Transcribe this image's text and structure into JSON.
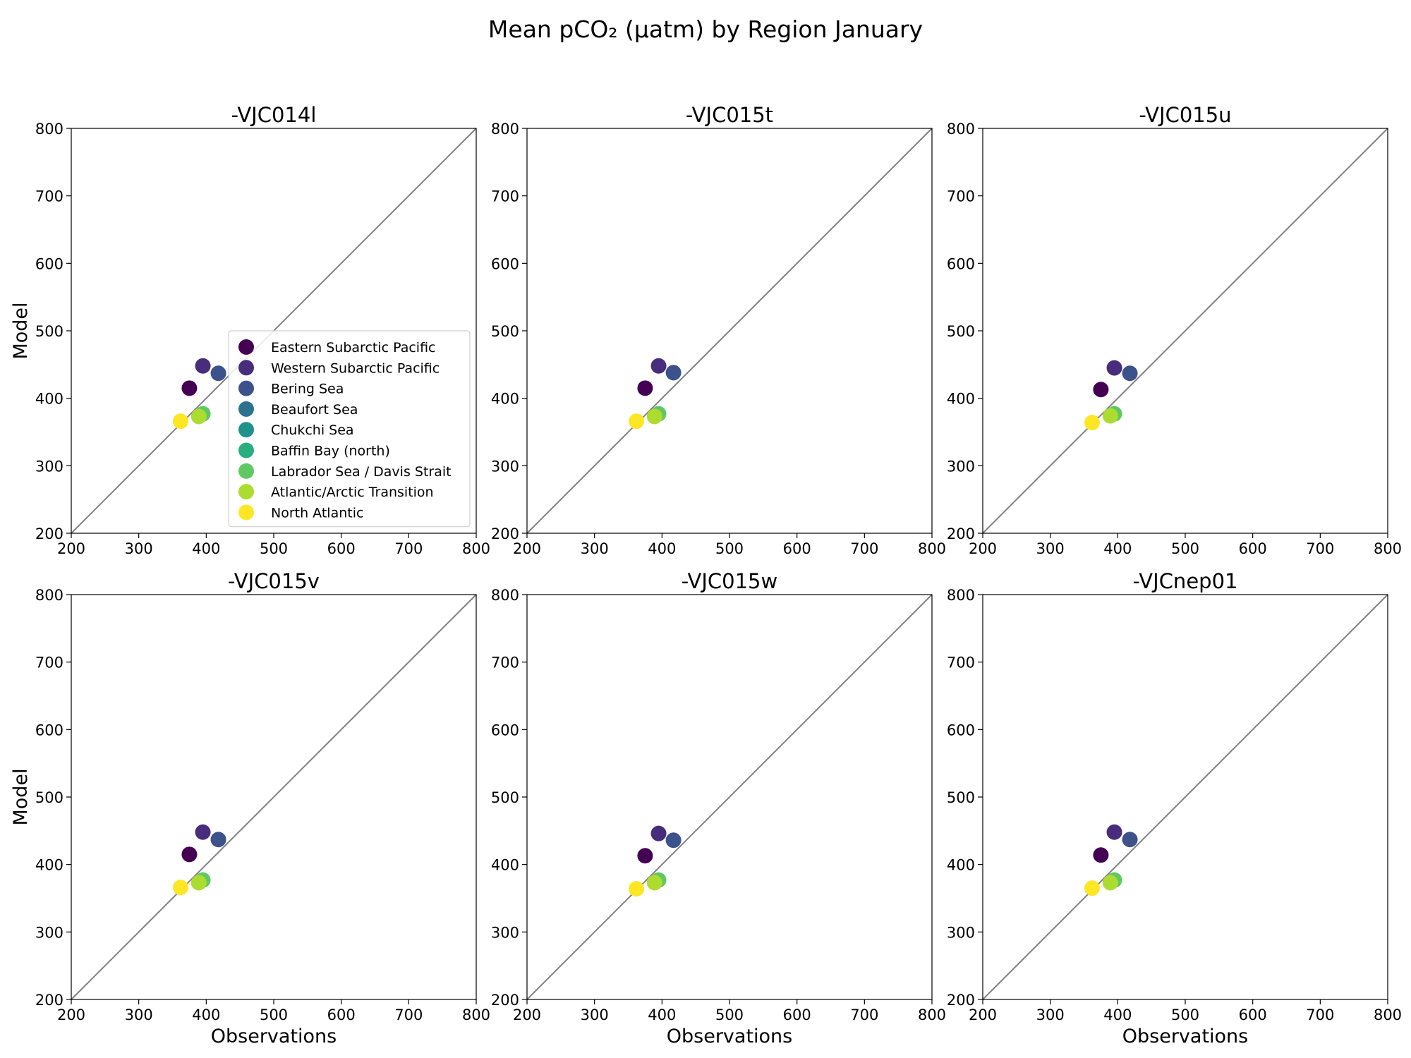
{
  "chart_data": {
    "type": "scatter",
    "title": "Mean pCO₂ (μatm) by Region January",
    "xlabel": "Observations",
    "ylabel": "Model",
    "xlim": [
      200,
      800
    ],
    "ylim": [
      200,
      800
    ],
    "ticks": [
      200,
      300,
      400,
      500,
      600,
      700,
      800
    ],
    "reference_line": "1:1",
    "grid": false,
    "legend_location": "lower-right of first panel",
    "legend": [
      {
        "name": "Eastern Subarctic Pacific",
        "color": "#440154"
      },
      {
        "name": "Western Subarctic Pacific",
        "color": "#472d7b"
      },
      {
        "name": "Bering Sea",
        "color": "#3b528b"
      },
      {
        "name": "Beaufort Sea",
        "color": "#2c728e"
      },
      {
        "name": "Chukchi Sea",
        "color": "#21918c"
      },
      {
        "name": "Baffin Bay (north)",
        "color": "#28ae80"
      },
      {
        "name": "Labrador Sea / Davis Strait",
        "color": "#5ec962"
      },
      {
        "name": "Atlantic/Arctic Transition",
        "color": "#addc30"
      },
      {
        "name": "North Atlantic",
        "color": "#fde725"
      }
    ],
    "panels": [
      {
        "title": "-VJC014l",
        "points": [
          {
            "region": "Eastern Subarctic Pacific",
            "x": 375,
            "y": 415
          },
          {
            "region": "Western Subarctic Pacific",
            "x": 395,
            "y": 448
          },
          {
            "region": "Bering Sea",
            "x": 418,
            "y": 437
          },
          {
            "region": "Labrador Sea / Davis Strait",
            "x": 395,
            "y": 377
          },
          {
            "region": "Atlantic/Arctic Transition",
            "x": 389,
            "y": 373
          },
          {
            "region": "North Atlantic",
            "x": 362,
            "y": 366
          }
        ]
      },
      {
        "title": "-VJC015t",
        "points": [
          {
            "region": "Eastern Subarctic Pacific",
            "x": 375,
            "y": 415
          },
          {
            "region": "Western Subarctic Pacific",
            "x": 395,
            "y": 448
          },
          {
            "region": "Bering Sea",
            "x": 417,
            "y": 438
          },
          {
            "region": "Labrador Sea / Davis Strait",
            "x": 395,
            "y": 377
          },
          {
            "region": "Atlantic/Arctic Transition",
            "x": 389,
            "y": 373
          },
          {
            "region": "North Atlantic",
            "x": 362,
            "y": 366
          }
        ]
      },
      {
        "title": "-VJC015u",
        "points": [
          {
            "region": "Eastern Subarctic Pacific",
            "x": 375,
            "y": 413
          },
          {
            "region": "Western Subarctic Pacific",
            "x": 395,
            "y": 445
          },
          {
            "region": "Bering Sea",
            "x": 418,
            "y": 437
          },
          {
            "region": "Labrador Sea / Davis Strait",
            "x": 395,
            "y": 377
          },
          {
            "region": "Atlantic/Arctic Transition",
            "x": 389,
            "y": 374
          },
          {
            "region": "North Atlantic",
            "x": 362,
            "y": 364
          }
        ]
      },
      {
        "title": "-VJC015v",
        "points": [
          {
            "region": "Eastern Subarctic Pacific",
            "x": 375,
            "y": 415
          },
          {
            "region": "Western Subarctic Pacific",
            "x": 395,
            "y": 448
          },
          {
            "region": "Bering Sea",
            "x": 418,
            "y": 437
          },
          {
            "region": "Labrador Sea / Davis Strait",
            "x": 395,
            "y": 377
          },
          {
            "region": "Atlantic/Arctic Transition",
            "x": 389,
            "y": 373
          },
          {
            "region": "North Atlantic",
            "x": 362,
            "y": 366
          }
        ]
      },
      {
        "title": "-VJC015w",
        "points": [
          {
            "region": "Eastern Subarctic Pacific",
            "x": 375,
            "y": 413
          },
          {
            "region": "Western Subarctic Pacific",
            "x": 395,
            "y": 446
          },
          {
            "region": "Bering Sea",
            "x": 417,
            "y": 436
          },
          {
            "region": "Labrador Sea / Davis Strait",
            "x": 395,
            "y": 377
          },
          {
            "region": "Atlantic/Arctic Transition",
            "x": 389,
            "y": 373
          },
          {
            "region": "North Atlantic",
            "x": 362,
            "y": 364
          }
        ]
      },
      {
        "title": "-VJCnep01",
        "points": [
          {
            "region": "Eastern Subarctic Pacific",
            "x": 375,
            "y": 414
          },
          {
            "region": "Western Subarctic Pacific",
            "x": 395,
            "y": 448
          },
          {
            "region": "Bering Sea",
            "x": 418,
            "y": 437
          },
          {
            "region": "Labrador Sea / Davis Strait",
            "x": 395,
            "y": 377
          },
          {
            "region": "Atlantic/Arctic Transition",
            "x": 389,
            "y": 373
          },
          {
            "region": "North Atlantic",
            "x": 362,
            "y": 365
          }
        ]
      }
    ]
  }
}
